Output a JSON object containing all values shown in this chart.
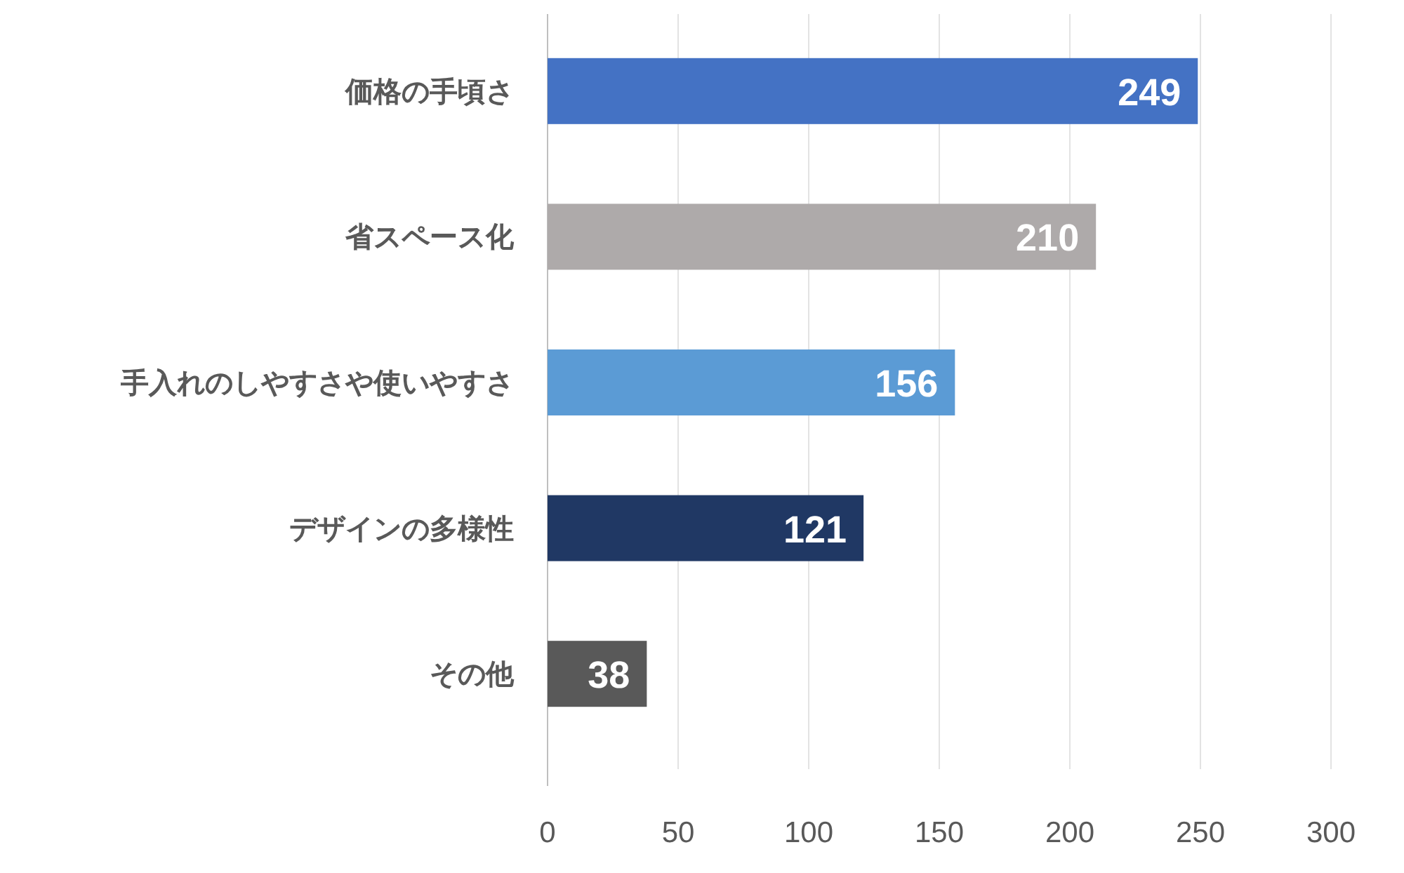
{
  "chart_data": {
    "type": "bar",
    "orientation": "horizontal",
    "categories": [
      "価格の手頃さ",
      "省スペース化",
      "手入れのしやすさや使いやすさ",
      "デザインの多様性",
      "その他"
    ],
    "values": [
      249,
      210,
      156,
      121,
      38
    ],
    "colors": [
      "#4472c4",
      "#aeaaaa",
      "#5b9bd5",
      "#203864",
      "#595959"
    ],
    "xlim": [
      0,
      300
    ],
    "xticks": [
      0,
      50,
      100,
      150,
      200,
      250,
      300
    ],
    "data_labels": true,
    "grid": "x"
  }
}
